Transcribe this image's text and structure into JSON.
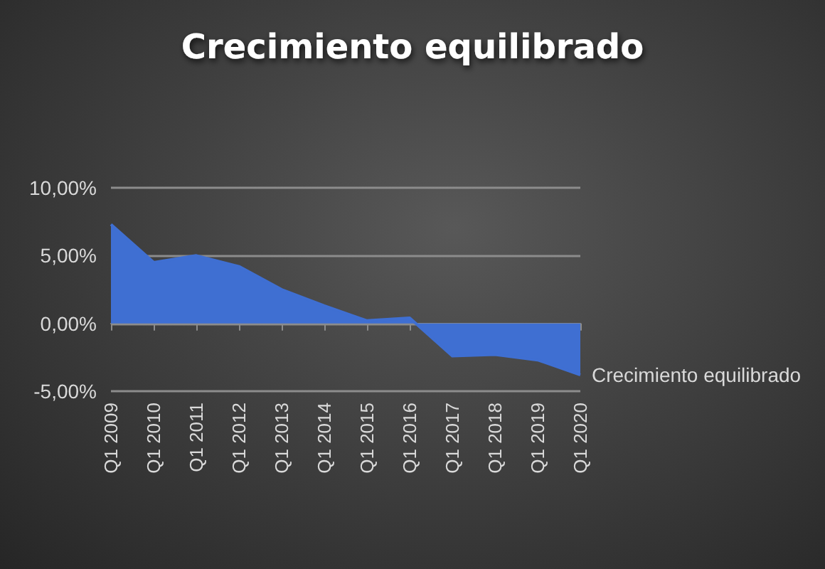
{
  "chart_data": {
    "type": "area",
    "title": "Crecimiento equilibrado",
    "categories": [
      "Q1 2009",
      "Q1 2010",
      "Q1 2011",
      "Q1 2012",
      "Q1 2013",
      "Q1 2014",
      "Q1 2015",
      "Q1 2016",
      "Q1 2017",
      "Q1 2018",
      "Q1 2019",
      "Q1 2020"
    ],
    "series": [
      {
        "name": "Crecimiento equilibrado",
        "color": "#3f6fd2",
        "values": [
          7.3,
          4.5,
          5.0,
          4.2,
          2.5,
          1.3,
          0.2,
          0.4,
          -2.4,
          -2.3,
          -2.7,
          -3.8
        ]
      }
    ],
    "ylim": [
      -5,
      10
    ],
    "yticks": [
      {
        "value": -5,
        "label": "-5,00%"
      },
      {
        "value": 0,
        "label": "0,00%"
      },
      {
        "value": 5,
        "label": "5,00%"
      },
      {
        "value": 10,
        "label": "10,00%"
      }
    ],
    "grid": "y",
    "marker": "none"
  }
}
